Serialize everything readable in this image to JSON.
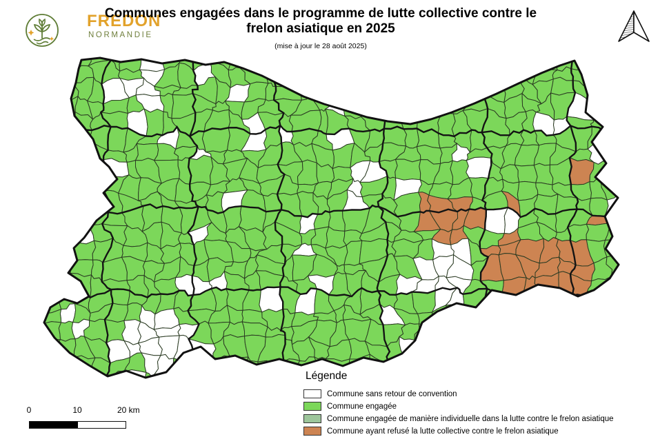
{
  "header": {
    "title": "Communes engagées dans le programme de lutte collective contre le frelon asiatique en 2025",
    "subtitle": "(mise à jour le 28 août 2025)"
  },
  "logo": {
    "name": "FREDON",
    "region": "NORMANDIE",
    "accent_color": "#e2a22b",
    "green_color": "#6f7f3c"
  },
  "legend": {
    "title": "Légende",
    "items": [
      {
        "label": "Commune sans retour de convention",
        "color": "#ffffff"
      },
      {
        "label": "Commune engagée",
        "color": "#7cd75a"
      },
      {
        "label": "Commune engagée de manière individuelle dans la lutte contre le frelon asiatique",
        "color": "#9dc69b"
      },
      {
        "label": "Commune ayant refusé la lutte collective contre le frelon asiatique",
        "color": "#cd8452"
      }
    ]
  },
  "scalebar": {
    "start": "0",
    "mid": "10",
    "end": "20 km"
  },
  "map": {
    "boundary_color": "#111111",
    "commune_border_color": "#2a3a22",
    "epci_border_color": "#141414"
  }
}
